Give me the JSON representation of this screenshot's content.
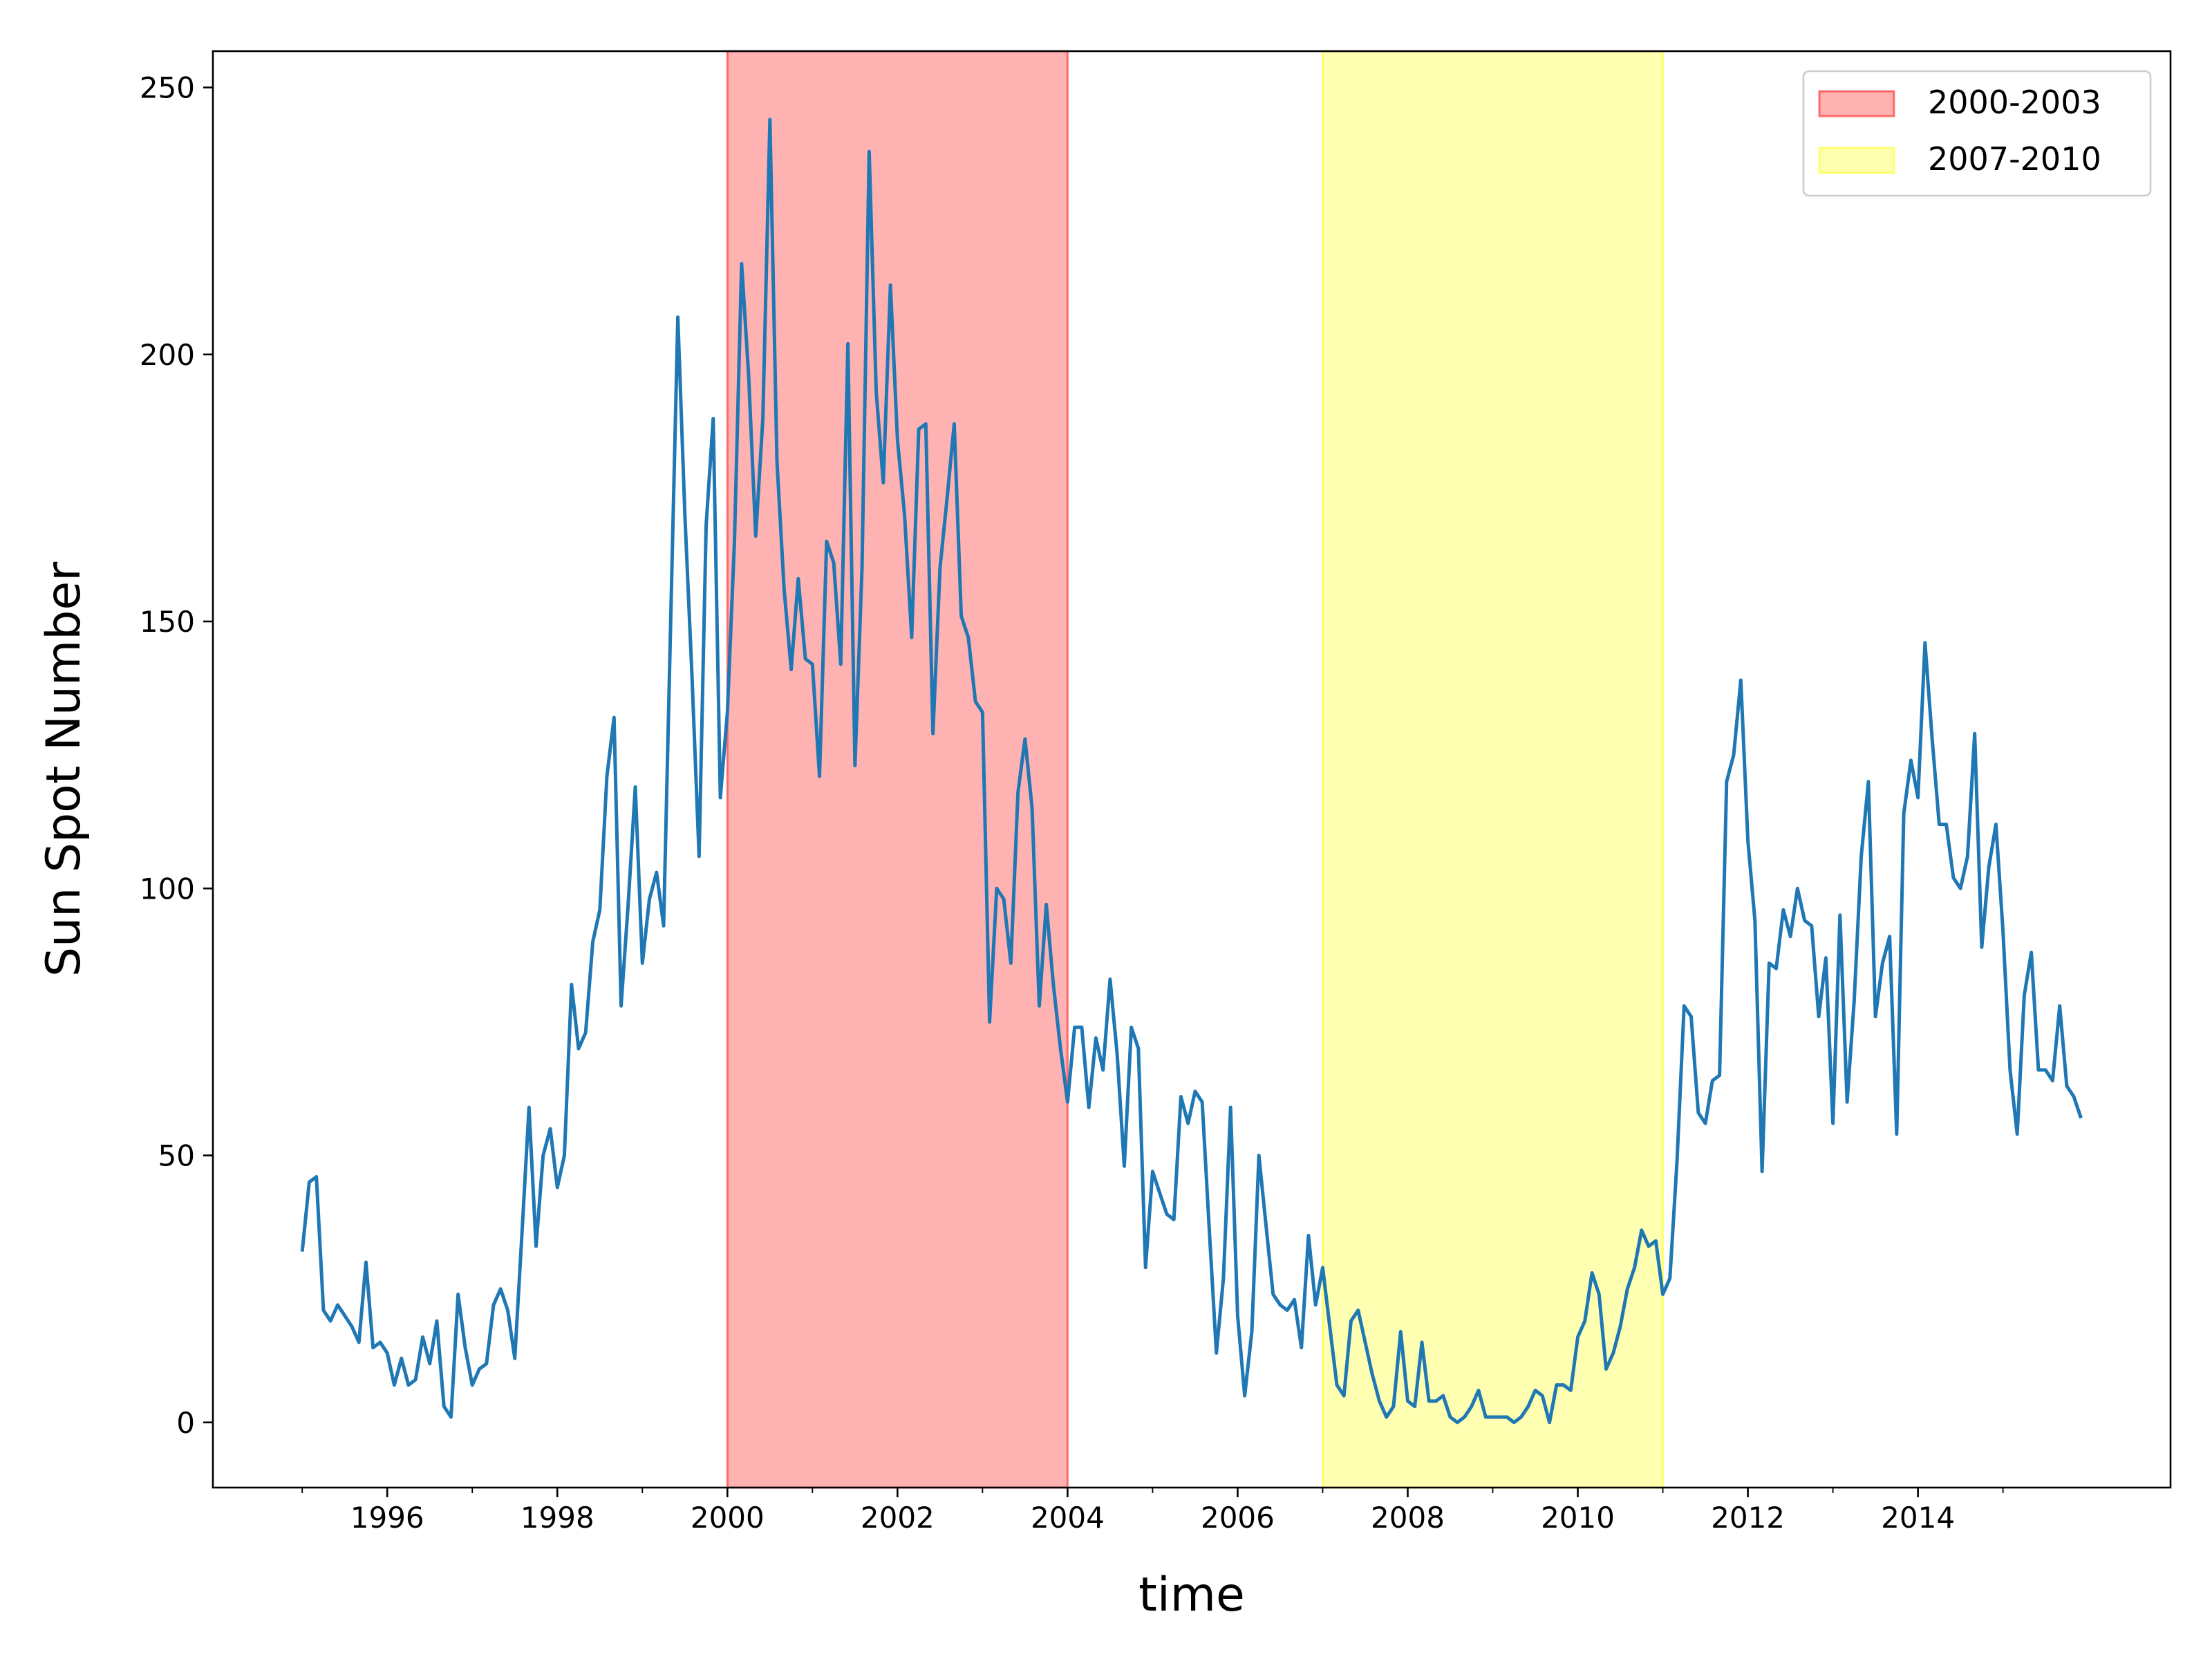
{
  "chart_data": {
    "type": "line",
    "xlabel": "time",
    "ylabel": "Sun Spot Number",
    "color": "#1f77b4",
    "xlim": [
      1993.95,
      2016.97
    ],
    "ylim": [
      -12.2,
      256.8
    ],
    "xticks": [
      1996,
      1998,
      2000,
      2002,
      2004,
      2006,
      2008,
      2010,
      2012,
      2014
    ],
    "xminor_ticks": [
      1995,
      1997,
      1999,
      2001,
      2003,
      2005,
      2007,
      2009,
      2011,
      2013,
      2015
    ],
    "yticks": [
      0,
      50,
      100,
      150,
      200,
      250
    ],
    "legend": "upper right",
    "span_alpha": 0.3,
    "spans": [
      {
        "label": "2000-2003",
        "start": 2000,
        "end": 2004,
        "color": "#ff0000"
      },
      {
        "label": "2007-2010",
        "start": 2007,
        "end": 2011,
        "color": "#ffff00"
      }
    ],
    "x": [
      1995,
      1995.083,
      1995.167,
      1995.25,
      1995.333,
      1995.417,
      1995.5,
      1995.583,
      1995.667,
      1995.75,
      1995.833,
      1995.917,
      1996,
      1996.083,
      1996.167,
      1996.25,
      1996.333,
      1996.417,
      1996.5,
      1996.583,
      1996.667,
      1996.75,
      1996.833,
      1996.917,
      1997,
      1997.083,
      1997.167,
      1997.25,
      1997.333,
      1997.417,
      1997.5,
      1997.583,
      1997.667,
      1997.75,
      1997.833,
      1997.917,
      1998,
      1998.083,
      1998.167,
      1998.25,
      1998.333,
      1998.417,
      1998.5,
      1998.583,
      1998.667,
      1998.75,
      1998.833,
      1998.917,
      1999,
      1999.083,
      1999.167,
      1999.25,
      1999.333,
      1999.417,
      1999.5,
      1999.583,
      1999.667,
      1999.75,
      1999.833,
      1999.917,
      2000,
      2000.083,
      2000.167,
      2000.25,
      2000.333,
      2000.417,
      2000.5,
      2000.583,
      2000.667,
      2000.75,
      2000.833,
      2000.917,
      2001,
      2001.083,
      2001.167,
      2001.25,
      2001.333,
      2001.417,
      2001.5,
      2001.583,
      2001.667,
      2001.75,
      2001.833,
      2001.917,
      2002,
      2002.083,
      2002.167,
      2002.25,
      2002.333,
      2002.417,
      2002.5,
      2002.583,
      2002.667,
      2002.75,
      2002.833,
      2002.917,
      2003,
      2003.083,
      2003.167,
      2003.25,
      2003.333,
      2003.417,
      2003.5,
      2003.583,
      2003.667,
      2003.75,
      2003.833,
      2003.917,
      2004,
      2004.083,
      2004.167,
      2004.25,
      2004.333,
      2004.417,
      2004.5,
      2004.583,
      2004.667,
      2004.75,
      2004.833,
      2004.917,
      2005,
      2005.083,
      2005.167,
      2005.25,
      2005.333,
      2005.417,
      2005.5,
      2005.583,
      2005.667,
      2005.75,
      2005.833,
      2005.917,
      2006,
      2006.083,
      2006.167,
      2006.25,
      2006.333,
      2006.417,
      2006.5,
      2006.583,
      2006.667,
      2006.75,
      2006.833,
      2006.917,
      2007,
      2007.083,
      2007.167,
      2007.25,
      2007.333,
      2007.417,
      2007.5,
      2007.583,
      2007.667,
      2007.75,
      2007.833,
      2007.917,
      2008,
      2008.083,
      2008.167,
      2008.25,
      2008.333,
      2008.417,
      2008.5,
      2008.583,
      2008.667,
      2008.75,
      2008.833,
      2008.917,
      2009,
      2009.083,
      2009.167,
      2009.25,
      2009.333,
      2009.417,
      2009.5,
      2009.583,
      2009.667,
      2009.75,
      2009.833,
      2009.917,
      2010,
      2010.083,
      2010.167,
      2010.25,
      2010.333,
      2010.417,
      2010.5,
      2010.583,
      2010.667,
      2010.75,
      2010.833,
      2010.917,
      2011,
      2011.083,
      2011.167,
      2011.25,
      2011.333,
      2011.417,
      2011.5,
      2011.583,
      2011.667,
      2011.75,
      2011.833,
      2011.917,
      2012,
      2012.083,
      2012.167,
      2012.25,
      2012.333,
      2012.417,
      2012.5,
      2012.583,
      2012.667,
      2012.75,
      2012.833,
      2012.917,
      2013,
      2013.083,
      2013.167,
      2013.25,
      2013.333,
      2013.417,
      2013.5,
      2013.583,
      2013.667,
      2013.75,
      2013.833,
      2013.917,
      2014,
      2014.083,
      2014.167,
      2014.25,
      2014.333,
      2014.417,
      2014.5,
      2014.583,
      2014.667,
      2014.75,
      2014.833,
      2014.917,
      2015,
      2015.083,
      2015.167,
      2015.25,
      2015.333,
      2015.417,
      2015.5,
      2015.583,
      2015.667,
      2015.75,
      2015.833,
      2015.917
    ],
    "values": [
      32,
      45,
      46,
      21,
      19,
      22,
      20,
      18,
      15,
      30,
      14,
      15,
      13,
      7,
      12,
      7,
      8,
      16,
      11,
      19,
      3,
      1,
      24,
      14,
      7,
      10,
      11,
      22,
      25,
      21,
      12,
      35,
      59,
      33,
      50,
      55,
      44,
      50,
      82,
      70,
      73,
      90,
      96,
      121,
      132,
      78,
      97,
      119,
      86,
      98,
      103,
      93,
      150,
      207,
      170,
      140,
      106,
      168,
      188,
      117,
      133,
      165,
      217,
      196,
      166,
      188,
      244,
      180,
      156,
      141,
      158,
      143,
      142,
      121,
      165,
      161,
      142,
      202,
      123,
      160,
      238,
      193,
      176,
      213,
      184,
      170,
      147,
      186,
      187,
      129,
      160,
      173,
      187,
      151,
      147,
      135,
      133,
      75,
      100,
      98,
      86,
      118,
      128,
      115,
      78,
      97,
      82,
      70,
      60,
      74,
      74,
      59,
      72,
      66,
      83,
      69,
      48,
      74,
      70,
      29,
      47,
      43,
      39,
      38,
      61,
      56,
      62,
      60,
      36,
      13,
      27,
      59,
      20,
      5,
      17,
      50,
      37,
      24,
      22,
      21,
      23,
      14,
      35,
      22,
      29,
      18,
      7,
      5,
      19,
      21,
      15,
      9,
      4,
      1,
      3,
      17,
      4,
      3,
      15,
      4,
      4,
      5,
      1,
      0,
      1,
      3,
      6,
      1,
      1,
      1,
      1,
      0,
      1,
      3,
      6,
      5,
      0,
      7,
      7,
      6,
      16,
      19,
      28,
      24,
      10,
      13,
      18,
      25,
      29,
      36,
      33,
      34,
      24,
      27,
      49,
      78,
      76,
      58,
      56,
      64,
      65,
      120,
      125,
      139,
      109,
      94,
      47,
      86,
      85,
      96,
      91,
      100,
      94,
      93,
      76,
      87,
      56,
      95,
      60,
      79,
      106,
      120,
      76,
      86,
      91,
      54,
      114,
      124,
      117,
      146,
      128,
      112,
      112,
      102,
      100,
      106,
      129,
      89,
      104,
      112,
      92,
      66,
      54,
      80,
      88,
      66,
      66,
      64,
      78,
      63,
      61,
      57
    ]
  }
}
